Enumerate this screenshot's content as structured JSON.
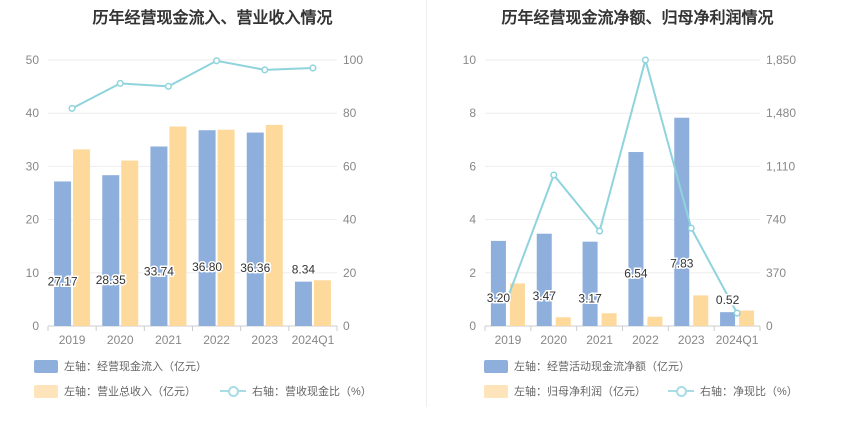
{
  "chart_data": [
    {
      "type": "bar",
      "title": "历年经营现金流入、营业收入情况",
      "categories": [
        "2019",
        "2020",
        "2021",
        "2022",
        "2023",
        "2024Q1"
      ],
      "series": [
        {
          "name": "左轴：经营现金流入（亿元）",
          "axis": "left",
          "type": "bar",
          "color": "#8eaedc",
          "values": [
            27.17,
            28.35,
            33.74,
            36.8,
            36.36,
            8.34
          ],
          "labels": [
            "27.17",
            "28.35",
            "33.74",
            "36.80",
            "36.36",
            "8.34"
          ]
        },
        {
          "name": "左轴：营业总收入（亿元）",
          "axis": "left",
          "type": "bar",
          "color": "#fdd99b",
          "values": [
            33.2,
            31.1,
            37.5,
            36.9,
            37.8,
            8.6
          ]
        },
        {
          "name": "右轴：营收现金比（%）",
          "axis": "right",
          "type": "line",
          "color": "#8fd3dd",
          "values": [
            81.8,
            91.2,
            90.1,
            99.7,
            96.3,
            97.0
          ]
        }
      ],
      "left_axis": {
        "min": 0,
        "max": 50,
        "ticks": [
          "0",
          "10",
          "20",
          "30",
          "40",
          "50"
        ]
      },
      "right_axis": {
        "min": 0,
        "max": 100,
        "ticks": [
          "0",
          "20",
          "40",
          "60",
          "80",
          "100"
        ]
      },
      "grid": true,
      "legend_position": "bottom-left"
    },
    {
      "type": "bar",
      "title": "历年经营现金流净额、归母净利润情况",
      "categories": [
        "2019",
        "2020",
        "2021",
        "2022",
        "2023",
        "2024Q1"
      ],
      "series": [
        {
          "name": "左轴：经营活动现金流净额（亿元）",
          "axis": "left",
          "type": "bar",
          "color": "#8eaedc",
          "values": [
            3.2,
            3.47,
            3.17,
            6.54,
            7.83,
            0.52
          ],
          "labels": [
            "3.20",
            "3.47",
            "3.17",
            "6.54",
            "7.83",
            "0.52"
          ]
        },
        {
          "name": "左轴：归母净利润（亿元）",
          "axis": "left",
          "type": "bar",
          "color": "#fdd99b",
          "values": [
            1.6,
            0.33,
            0.48,
            0.35,
            1.15,
            0.58
          ]
        },
        {
          "name": "右轴：净现比（%）",
          "axis": "right",
          "type": "line",
          "color": "#8fd3dd",
          "values": [
            200,
            1050,
            660,
            1850,
            680,
            90
          ]
        }
      ],
      "left_axis": {
        "min": 0,
        "max": 10,
        "ticks": [
          "0",
          "2",
          "4",
          "6",
          "8",
          "10"
        ]
      },
      "right_axis": {
        "min": 0,
        "max": 1850,
        "ticks": [
          "0",
          "370",
          "740",
          "1,110",
          "1,480",
          "1,850"
        ]
      },
      "grid": true,
      "legend_position": "bottom-left"
    }
  ]
}
